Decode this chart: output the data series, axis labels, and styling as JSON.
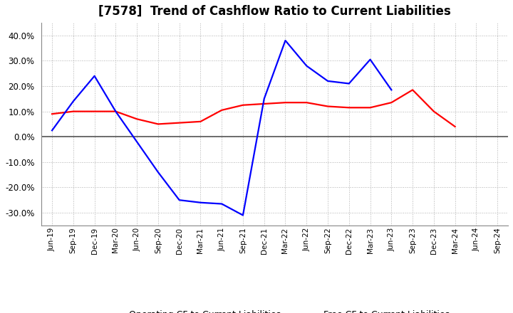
{
  "title": "[7578]  Trend of Cashflow Ratio to Current Liabilities",
  "x_labels": [
    "Jun-19",
    "Sep-19",
    "Dec-19",
    "Mar-20",
    "Jun-20",
    "Sep-20",
    "Dec-20",
    "Mar-21",
    "Jun-21",
    "Sep-21",
    "Dec-21",
    "Mar-22",
    "Jun-22",
    "Sep-22",
    "Dec-22",
    "Mar-23",
    "Jun-23",
    "Sep-23",
    "Dec-23",
    "Mar-24",
    "Jun-24",
    "Sep-24"
  ],
  "operating_cf": [
    9.0,
    10.0,
    10.0,
    10.0,
    7.0,
    5.0,
    5.5,
    6.0,
    10.5,
    12.5,
    13.0,
    13.5,
    13.5,
    12.0,
    11.5,
    11.5,
    13.5,
    18.5,
    10.0,
    4.0,
    null,
    null
  ],
  "free_cf": [
    2.5,
    14.0,
    24.0,
    10.0,
    -2.0,
    -14.0,
    -25.0,
    -26.0,
    -26.5,
    -31.0,
    15.0,
    38.0,
    28.0,
    22.0,
    21.0,
    30.5,
    18.5,
    null,
    null,
    null,
    null,
    null
  ],
  "ylim": [
    -35,
    45
  ],
  "yticks": [
    -30,
    -20,
    -10,
    0,
    10,
    20,
    30,
    40
  ],
  "operating_color": "#ff0000",
  "free_color": "#0000ff",
  "background_color": "#ffffff",
  "grid_color": "#b0b0b0",
  "zero_line_color": "#555555",
  "title_fontsize": 12,
  "legend_labels": [
    "Operating CF to Current Liabilities",
    "Free CF to Current Liabilities"
  ]
}
